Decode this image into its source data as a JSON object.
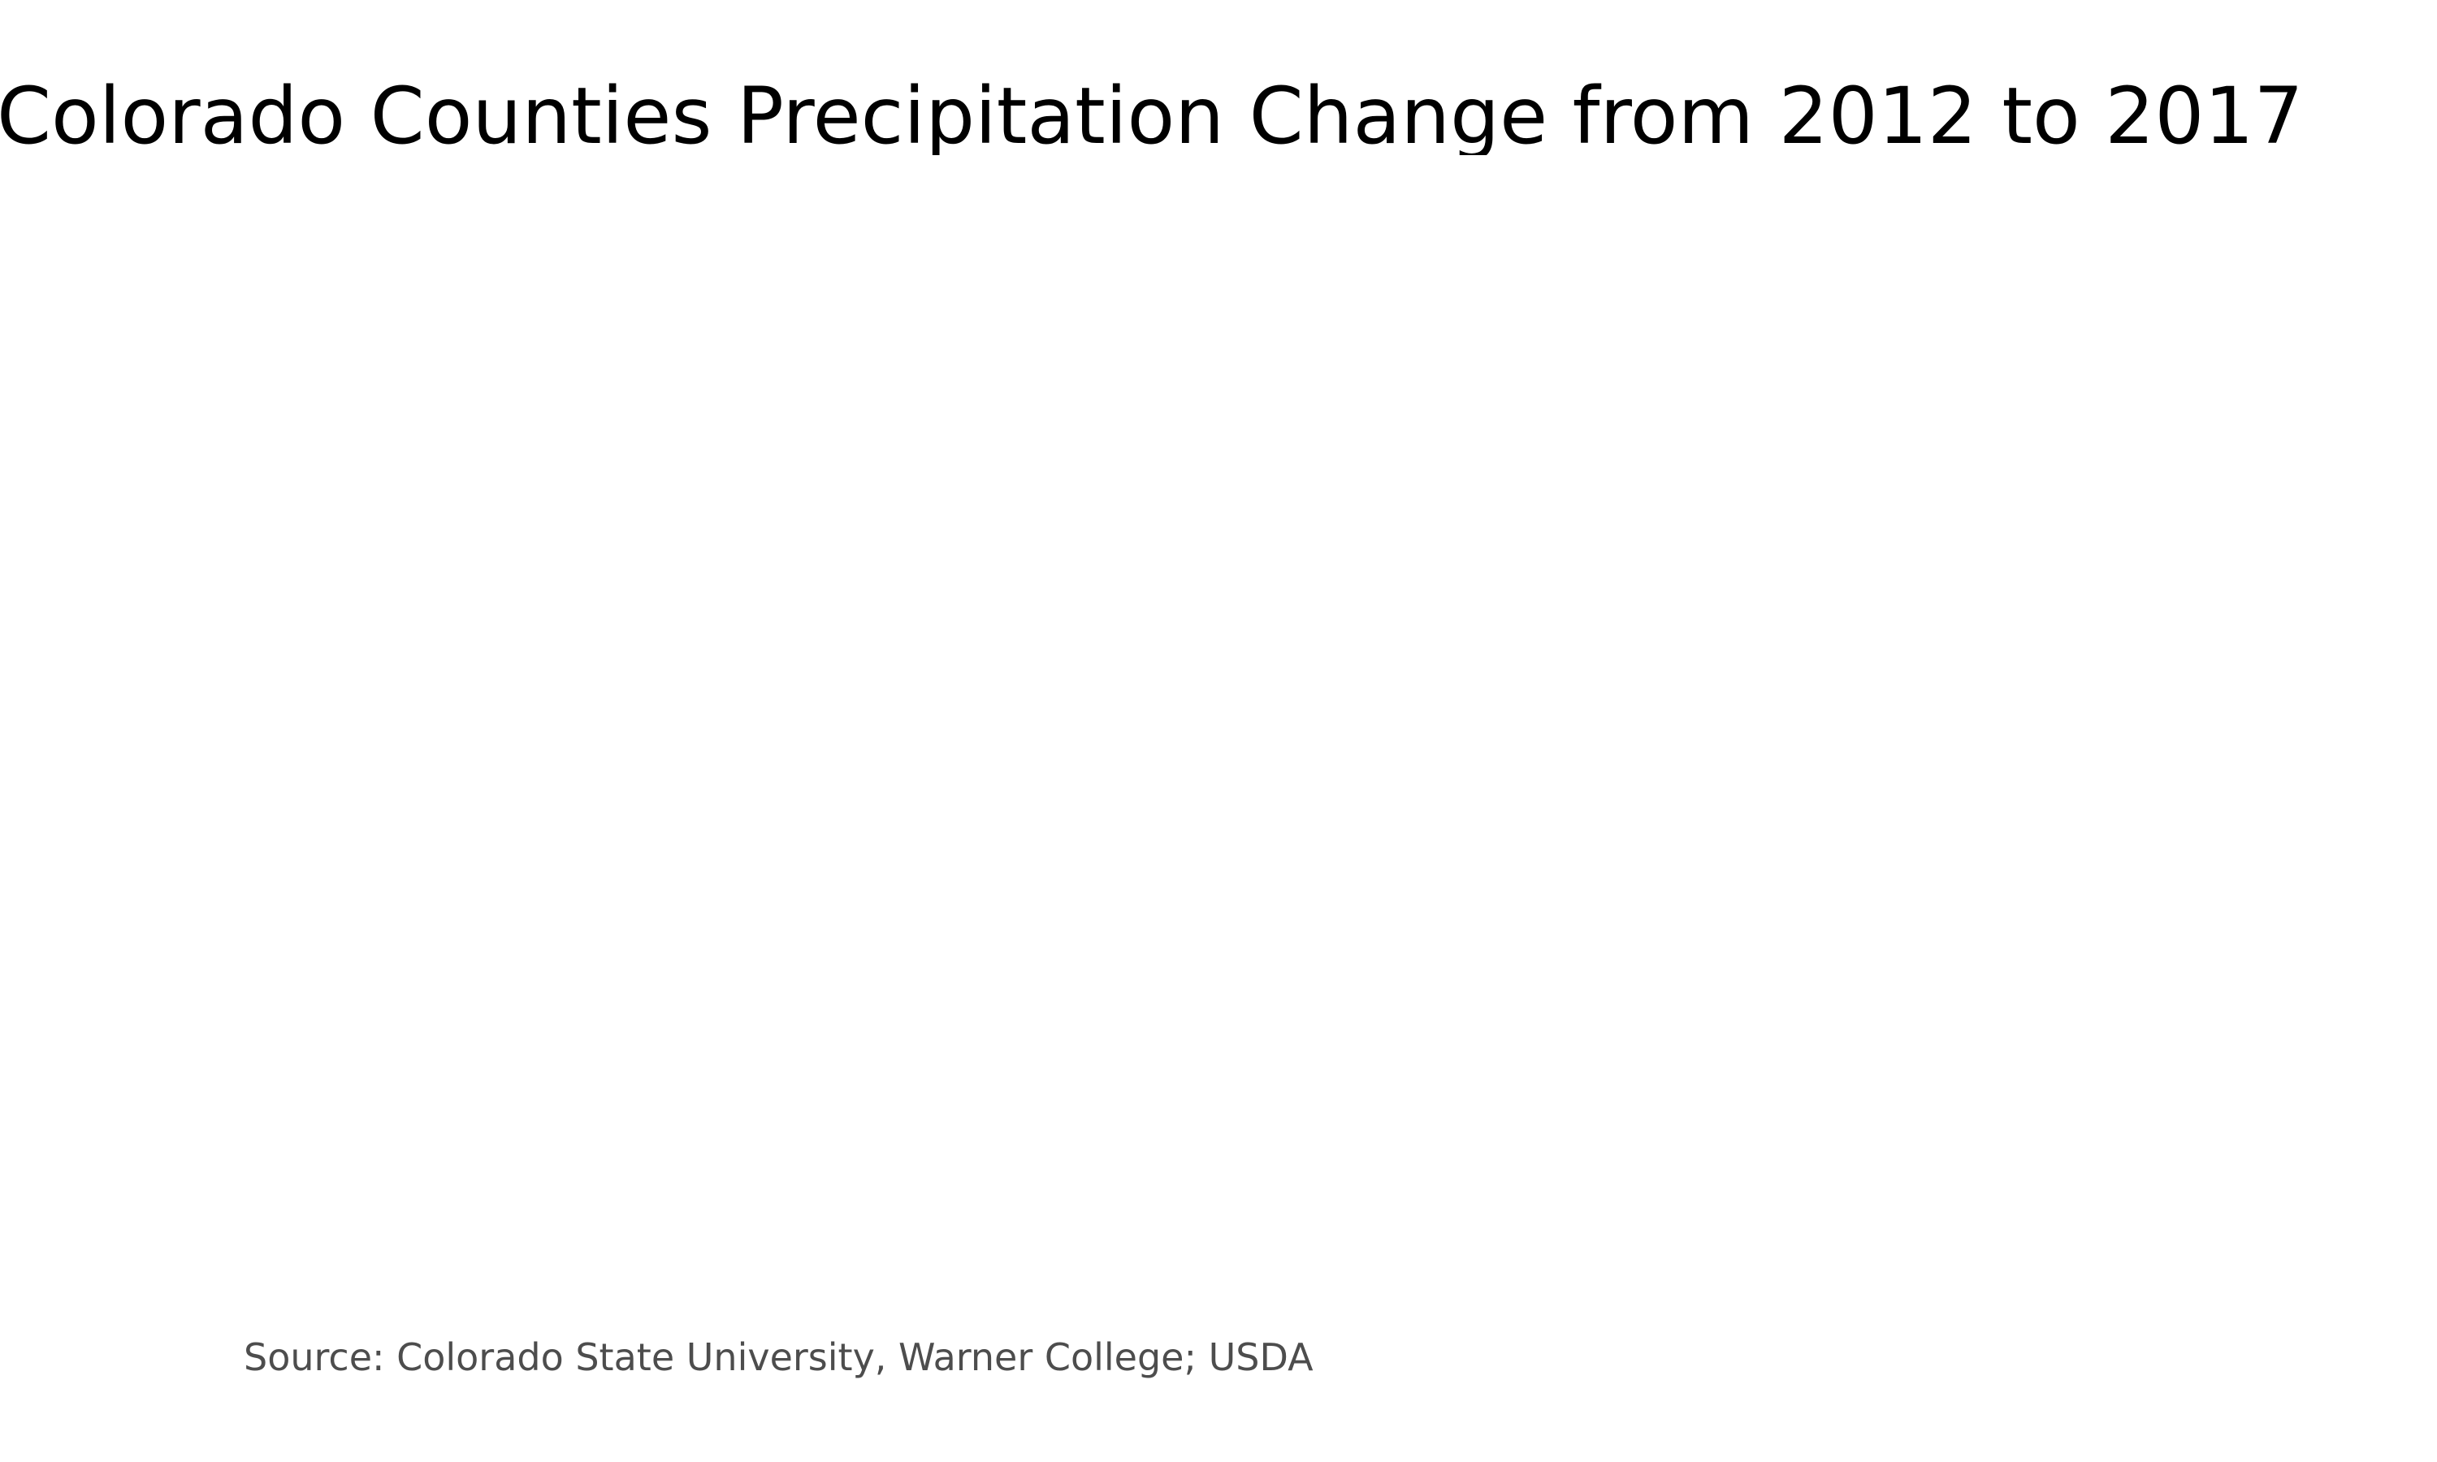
{
  "map": {
    "title": "Colorado Counties Precipitation Change from 2012 to 2017",
    "source": "Source: Colorado State University, Warner College; USDA",
    "colors": {
      "background": "#ffffff",
      "title": "#000000",
      "source": "#4d4d4d"
    }
  }
}
